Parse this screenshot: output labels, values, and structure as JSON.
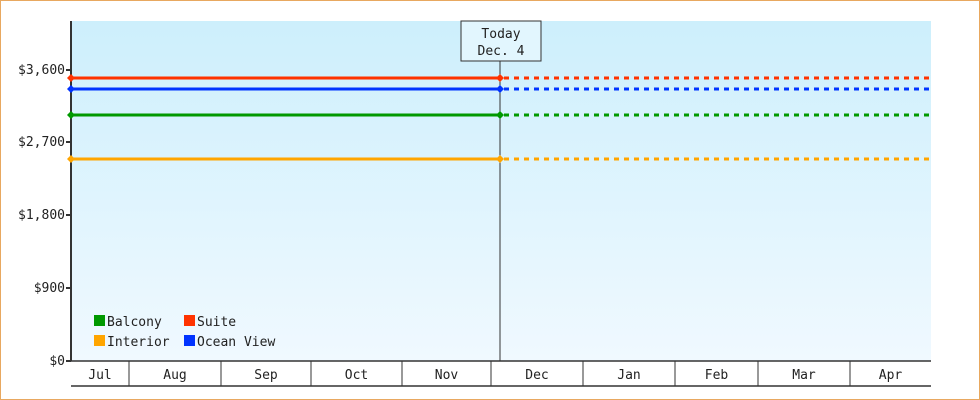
{
  "chart_data": {
    "type": "line",
    "x_categories": [
      "Jul",
      "Aug",
      "Sep",
      "Oct",
      "Nov",
      "Dec",
      "Jan",
      "Feb",
      "Mar",
      "Apr"
    ],
    "y_ticks": [
      "$0",
      "$900",
      "$1,800",
      "$2,700",
      "$3,600"
    ],
    "y_tick_values": [
      0,
      900,
      1800,
      2700,
      3600
    ],
    "ylim": [
      0,
      4200
    ],
    "today": {
      "line1": "Today",
      "line2": "Dec. 4"
    },
    "series": [
      {
        "name": "Suite",
        "value": 3490,
        "color": "#ff3300"
      },
      {
        "name": "Ocean View",
        "value": 3355,
        "color": "#0033ff"
      },
      {
        "name": "Balcony",
        "value": 3045,
        "color": "#009900"
      },
      {
        "name": "Interior",
        "value": 2490,
        "color": "#ffa500"
      }
    ],
    "legend": {
      "placement": "bottom-left",
      "items": [
        {
          "name": "Balcony",
          "color": "#009900"
        },
        {
          "name": "Suite",
          "color": "#ff3300"
        },
        {
          "name": "Interior",
          "color": "#ffa500"
        },
        {
          "name": "Ocean View",
          "color": "#0033ff"
        }
      ]
    },
    "style": {
      "line_before_today": "solid",
      "line_after_today": "dashed",
      "grid": false
    }
  }
}
